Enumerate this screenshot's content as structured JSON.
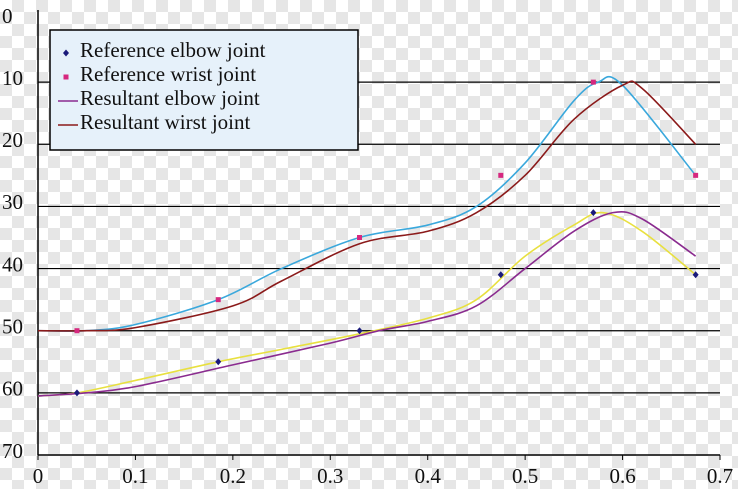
{
  "chart_data": {
    "type": "line",
    "xlim": [
      0,
      0.7
    ],
    "xticks": [
      0,
      0.1,
      0.2,
      0.3,
      0.4,
      0.5,
      0.6,
      0.7
    ],
    "ylim": [
      0,
      70
    ],
    "yticks": [
      0,
      10,
      20,
      30,
      40,
      50,
      60,
      70
    ],
    "y_reversed": true,
    "grid": true,
    "legend": "upper left",
    "series": [
      {
        "name": "Reference elbow joint",
        "color": "#1a1a7a",
        "marker": "diamond",
        "x": [
          0.04,
          0.185,
          0.33,
          0.475,
          0.57,
          0.675
        ],
        "values": [
          60,
          55,
          50,
          41,
          31,
          41
        ],
        "line": {
          "color": "#e8e040",
          "x": [
            0,
            0.04,
            0.1,
            0.185,
            0.25,
            0.33,
            0.4,
            0.45,
            0.5,
            0.55,
            0.58,
            0.62,
            0.675
          ],
          "values": [
            60.5,
            60,
            58,
            55,
            53,
            50.5,
            48,
            45,
            38,
            33,
            31,
            34,
            41
          ]
        }
      },
      {
        "name": "Reference wrist joint",
        "color": "#d6287f",
        "marker": "square",
        "x": [
          0.04,
          0.185,
          0.33,
          0.475,
          0.57,
          0.675
        ],
        "values": [
          50,
          45,
          35,
          25,
          10,
          25
        ],
        "line": {
          "color": "#3aa8dc",
          "x": [
            0,
            0.05,
            0.1,
            0.185,
            0.25,
            0.33,
            0.4,
            0.45,
            0.5,
            0.55,
            0.575,
            0.6,
            0.675
          ],
          "values": [
            50,
            50,
            49,
            45,
            40,
            35,
            33,
            30,
            23,
            13,
            10,
            10.5,
            25
          ]
        }
      },
      {
        "name": "Resultant elbow joint",
        "color": "#8a2b8f",
        "x": [
          0,
          0.05,
          0.1,
          0.2,
          0.3,
          0.35,
          0.4,
          0.45,
          0.5,
          0.55,
          0.59,
          0.62,
          0.675
        ],
        "values": [
          60.5,
          60,
          59,
          55.5,
          52,
          50,
          48.5,
          46,
          40,
          34,
          31,
          32,
          38
        ]
      },
      {
        "name": "Resultant wirst joint",
        "color": "#8b1a1a",
        "x": [
          0,
          0.05,
          0.1,
          0.2,
          0.25,
          0.33,
          0.4,
          0.45,
          0.5,
          0.55,
          0.6,
          0.62,
          0.675
        ],
        "values": [
          50,
          50,
          49.5,
          46,
          42,
          36,
          34,
          31,
          25,
          16,
          10.5,
          11,
          20
        ]
      }
    ]
  }
}
